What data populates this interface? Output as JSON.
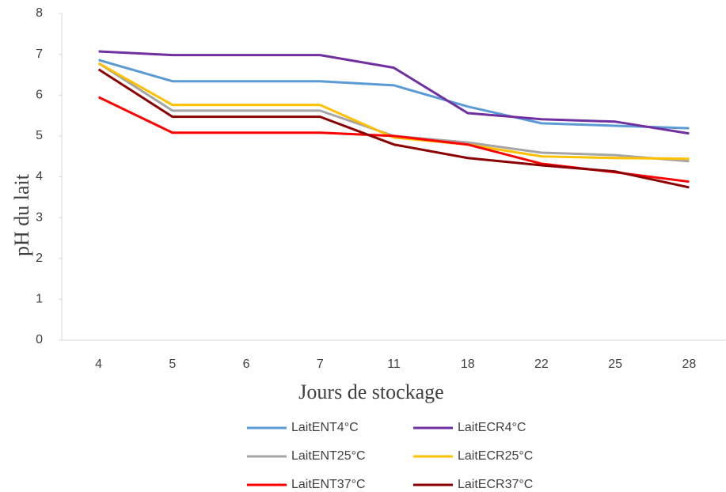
{
  "chart_data": {
    "type": "line",
    "x_label": "Jours de stockage",
    "y_label": "pH du lait",
    "categories": [
      "4",
      "5",
      "6",
      "7",
      "11",
      "18",
      "22",
      "25",
      "28"
    ],
    "ylim": [
      0,
      8
    ],
    "yticks": [
      0,
      1,
      2,
      3,
      4,
      5,
      6,
      7,
      8
    ],
    "grid": false,
    "series": [
      {
        "name": "LaitENT4°C",
        "color": "#5b9bd5",
        "values": [
          6.86,
          6.34,
          6.34,
          6.34,
          6.24,
          5.72,
          5.31,
          5.25,
          5.19
        ]
      },
      {
        "name": "LaitECR4°C",
        "color": "#7030a0",
        "values": [
          7.07,
          6.98,
          6.98,
          6.98,
          6.67,
          5.56,
          5.41,
          5.35,
          5.06
        ]
      },
      {
        "name": "LaitENT25°C",
        "color": "#a5a5a5",
        "values": [
          6.78,
          5.62,
          5.62,
          5.62,
          5.0,
          4.84,
          4.59,
          4.53,
          4.38
        ]
      },
      {
        "name": "LaitECR25°C",
        "color": "#ffc000",
        "values": [
          6.78,
          5.76,
          5.76,
          5.76,
          4.96,
          4.79,
          4.5,
          4.46,
          4.44
        ]
      },
      {
        "name": "LaitENT37°C",
        "color": "#ff0000",
        "values": [
          5.95,
          5.08,
          5.08,
          5.08,
          5.0,
          4.79,
          4.32,
          4.11,
          3.88
        ]
      },
      {
        "name": "LaitECR37°C",
        "color": "#8b0000",
        "values": [
          6.63,
          5.47,
          5.47,
          5.47,
          4.79,
          4.46,
          4.28,
          4.13,
          3.74
        ]
      }
    ]
  }
}
